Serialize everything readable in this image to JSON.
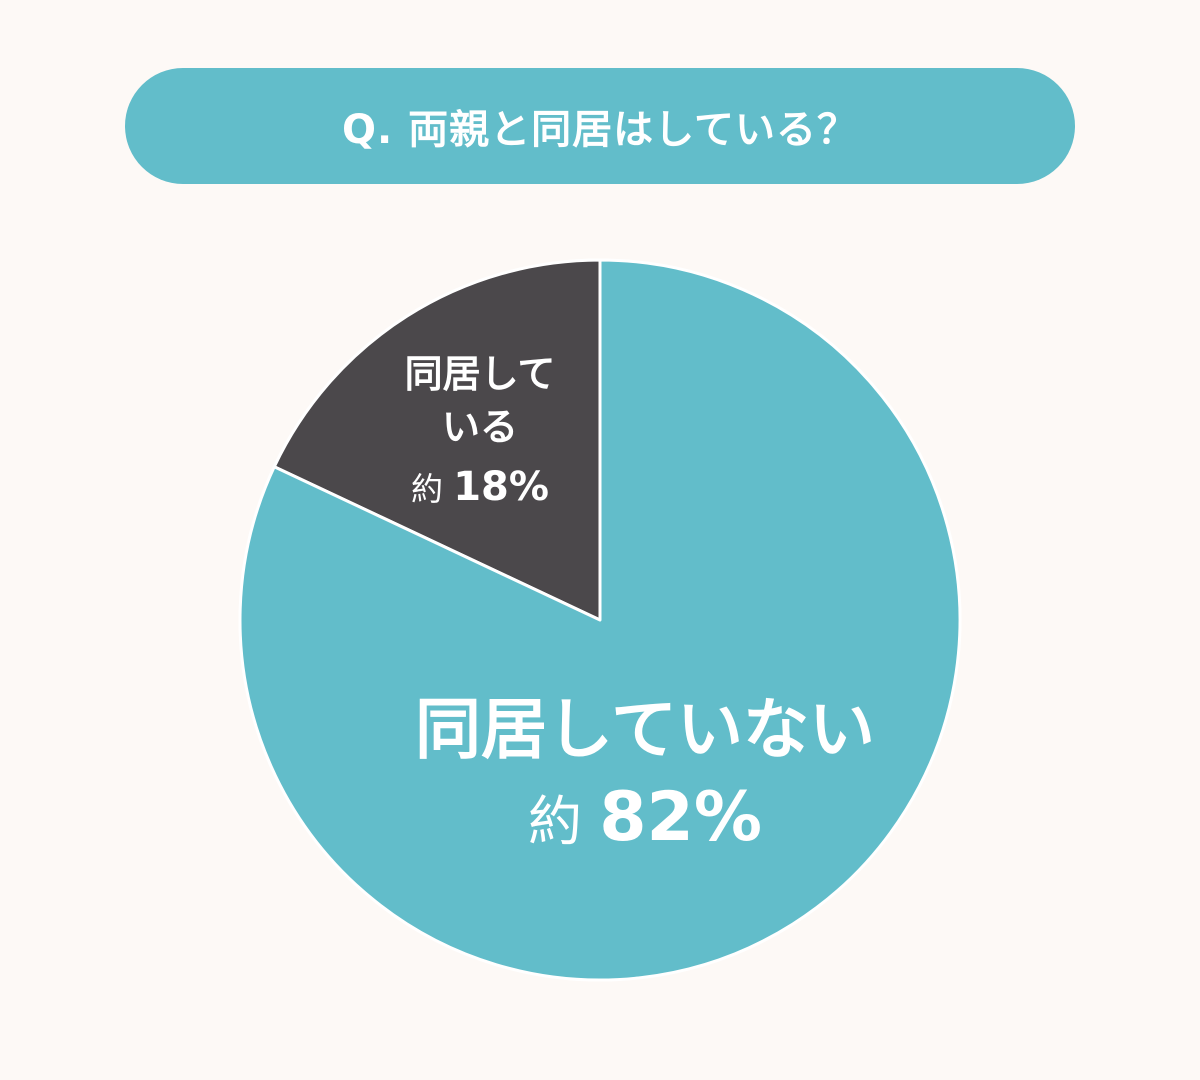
{
  "question": "Q. 両親と同居はしている？",
  "colors": {
    "background": "#fdf9f6",
    "banner": "#62bdca",
    "teal": "#62bdca",
    "dark": "#4b484b",
    "separator": "#ffffff"
  },
  "chart_data": {
    "type": "pie",
    "title": "Q. 両親と同居はしている？",
    "slices": [
      {
        "label_lines": [
          "同居して",
          "いる"
        ],
        "value_text": "約 18%",
        "value": 18,
        "color": "#4b484b"
      },
      {
        "label_lines": [
          "同居していない"
        ],
        "value_text": "約 82%",
        "value": 82,
        "color": "#62bdca"
      }
    ]
  }
}
